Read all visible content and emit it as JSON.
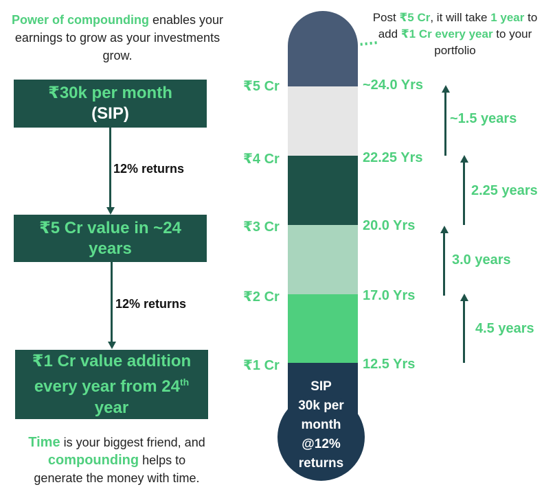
{
  "intro": {
    "highlight": "Power of compounding",
    "rest": " enables your earnings to grow as your investments grow."
  },
  "flow": {
    "box1_line1": "₹30k per month",
    "box1_line2": "(SIP)",
    "returns1": "12% returns",
    "box2_line1": "₹5 Cr value in ~24",
    "box2_line2": "years",
    "returns2": "12% returns",
    "box3_line1": "₹1 Cr value addition",
    "box3_line2_pre": "every year from 24",
    "box3_line2_sup": "th",
    "box3_line3": "year"
  },
  "outro": {
    "w1": "Time",
    "t1": " is your biggest friend, and",
    "w2": "compounding",
    "t2": " helps to",
    "t3": "generate the money with time."
  },
  "post_note": {
    "p1": "Post ",
    "g1": "₹5 Cr",
    "p2": ", it will take ",
    "g2": "1 year",
    "p3": " to add ",
    "g3": "₹1 Cr every year",
    "p4": " to your portfolio"
  },
  "thermometer": {
    "levels": [
      {
        "amount": "₹5 Cr",
        "years": "~24.0 Yrs"
      },
      {
        "amount": "₹4 Cr",
        "years": "22.25 Yrs"
      },
      {
        "amount": "₹3 Cr",
        "years": "20.0 Yrs"
      },
      {
        "amount": "₹2 Cr",
        "years": "17.0 Yrs"
      },
      {
        "amount": "₹1 Cr",
        "years": "12.5 Yrs"
      }
    ],
    "segment_colors": [
      "#e6e6e6",
      "#1e5248",
      "#a9d5bd",
      "#4fcf7e"
    ],
    "bulb": [
      "SIP",
      "30k per",
      "month",
      "@12%",
      "returns"
    ]
  },
  "gaps": [
    "~1.5 years",
    "2.25 years",
    "3.0 years",
    "4.5 years"
  ]
}
